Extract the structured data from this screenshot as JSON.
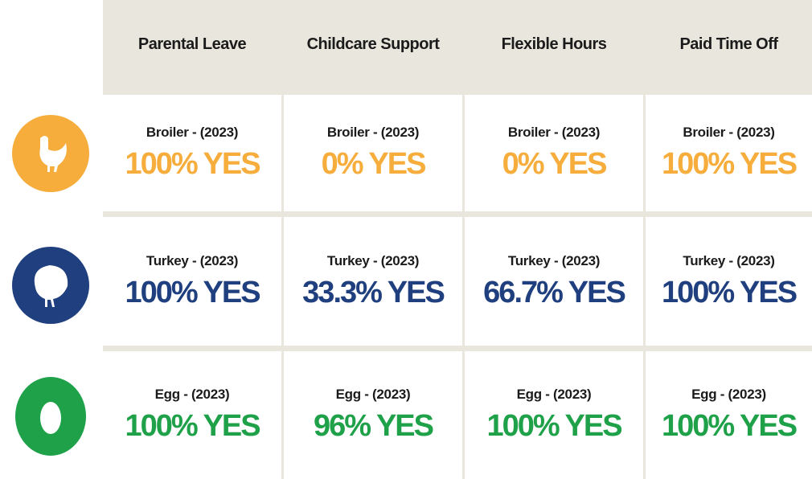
{
  "table": {
    "columns": [
      "Parental Leave",
      "Childcare Support",
      "Flexible Hours",
      "Paid Time Off"
    ],
    "rows": [
      {
        "cells": [
          {
            "label": "Broiler - (2023)",
            "value": "100% YES"
          },
          {
            "label": "Broiler - (2023)",
            "value": "0% YES"
          },
          {
            "label": "Broiler - (2023)",
            "value": "0% YES"
          },
          {
            "label": "Broiler - (2023)",
            "value": "100% YES"
          }
        ]
      },
      {
        "cells": [
          {
            "label": "Turkey - (2023)",
            "value": "100% YES"
          },
          {
            "label": "Turkey - (2023)",
            "value": "33.3% YES"
          },
          {
            "label": "Turkey - (2023)",
            "value": "66.7% YES"
          },
          {
            "label": "Turkey - (2023)",
            "value": "100% YES"
          }
        ]
      },
      {
        "cells": [
          {
            "label": "Egg - (2023)",
            "value": "100% YES"
          },
          {
            "label": "Egg - (2023)",
            "value": "96% YES"
          },
          {
            "label": "Egg - (2023)",
            "value": "100% YES"
          },
          {
            "label": "Egg - (2023)",
            "value": "100% YES"
          }
        ]
      }
    ]
  }
}
